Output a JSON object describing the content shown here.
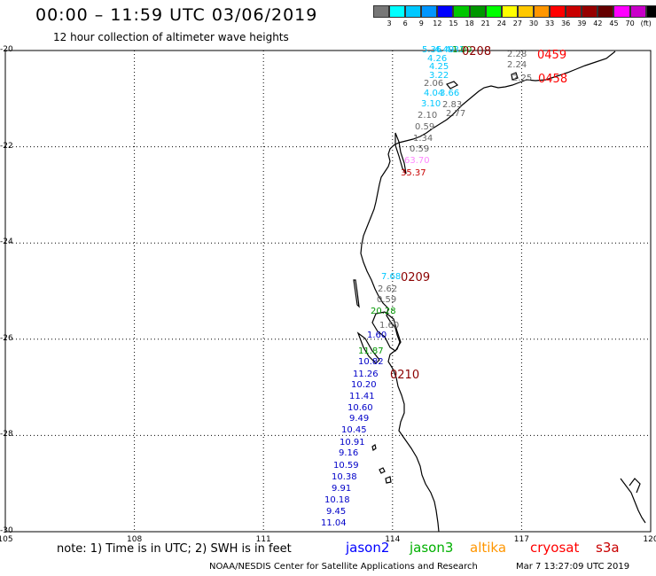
{
  "title": "00:00 – 11:59 UTC 03/06/2019",
  "subtitle": "12 hour collection of altimeter wave heights",
  "scale": {
    "colors": [
      "#777777",
      "#00ffff",
      "#00c8ff",
      "#0096ff",
      "#0000ff",
      "#00c800",
      "#009600",
      "#00ff00",
      "#ffff00",
      "#ffc800",
      "#ff9600",
      "#ff0000",
      "#c80000",
      "#960000",
      "#640000",
      "#ff00ff",
      "#c800c8",
      "#000000"
    ],
    "labels": [
      "3",
      "6",
      "9",
      "12",
      "15",
      "18",
      "21",
      "24",
      "27",
      "30",
      "33",
      "36",
      "39",
      "42",
      "45",
      "70",
      "(ft)"
    ]
  },
  "axes": {
    "lat_labels": [
      "-20",
      "-22",
      "-24",
      "-26",
      "-28",
      "-30"
    ],
    "lon_labels": [
      "105",
      "108",
      "111",
      "114",
      "117",
      "120"
    ]
  },
  "wave_heights": [
    {
      "text": "5.36",
      "color": "#00c8ff"
    },
    {
      "text": "4.49",
      "color": "#00c8ff"
    },
    {
      "text": "4.31",
      "color": "#00c8ff"
    },
    {
      "text": "4.26",
      "color": "#00c8ff"
    },
    {
      "text": "4.25",
      "color": "#00c8ff"
    },
    {
      "text": "3.22",
      "color": "#00c8ff"
    },
    {
      "text": "2.06",
      "color": "#666666"
    },
    {
      "text": "4.04",
      "color": "#00c8ff"
    },
    {
      "text": "3.66",
      "color": "#00c8ff"
    },
    {
      "text": "3.10",
      "color": "#00c8ff"
    },
    {
      "text": "2.83",
      "color": "#666666"
    },
    {
      "text": "2.10",
      "color": "#666666"
    },
    {
      "text": "2.77",
      "color": "#666666"
    },
    {
      "text": "0.59",
      "color": "#666666"
    },
    {
      "text": "1.34",
      "color": "#666666"
    },
    {
      "text": "0.59",
      "color": "#666666"
    },
    {
      "text": "63.70",
      "color": "#ff88ff"
    },
    {
      "text": "35.37",
      "color": "#c80000"
    },
    {
      "text": "2.28",
      "color": "#666666"
    },
    {
      "text": "2.24",
      "color": "#666666"
    },
    {
      "text": "2.25",
      "color": "#666666"
    },
    {
      "text": "1.00",
      "color": "#009600"
    },
    {
      "text": "7.68",
      "color": "#00c8ff"
    },
    {
      "text": "2.62",
      "color": "#666666"
    },
    {
      "text": "0.59",
      "color": "#666666"
    },
    {
      "text": "20.28",
      "color": "#009600"
    },
    {
      "text": "1.60",
      "color": "#666666"
    },
    {
      "text": "1.60",
      "color": "#0000c8"
    },
    {
      "text": "11.87",
      "color": "#009600"
    },
    {
      "text": "10.82",
      "color": "#0000c8"
    },
    {
      "text": "11.26",
      "color": "#0000c8"
    },
    {
      "text": "10.20",
      "color": "#0000c8"
    },
    {
      "text": "11.41",
      "color": "#0000c8"
    },
    {
      "text": "10.60",
      "color": "#0000c8"
    },
    {
      "text": "9.49",
      "color": "#0000c8"
    },
    {
      "text": "10.45",
      "color": "#0000c8"
    },
    {
      "text": "10.91",
      "color": "#0000c8"
    },
    {
      "text": "9.16",
      "color": "#0000c8"
    },
    {
      "text": "10.59",
      "color": "#0000c8"
    },
    {
      "text": "10.38",
      "color": "#0000c8"
    },
    {
      "text": "9.91",
      "color": "#0000c8"
    },
    {
      "text": "10.18",
      "color": "#0000c8"
    },
    {
      "text": "9.45",
      "color": "#0000c8"
    },
    {
      "text": "11.04",
      "color": "#0000c8"
    }
  ],
  "pass_times": [
    {
      "text": "0208",
      "color": "#8b0000"
    },
    {
      "text": "0459",
      "color": "#ff0000"
    },
    {
      "text": "0458",
      "color": "#ff0000"
    },
    {
      "text": "0209",
      "color": "#8b0000"
    },
    {
      "text": "0210",
      "color": "#8b0000"
    }
  ],
  "note": "note: 1) Time is in UTC; 2) SWH is in feet",
  "legend": [
    {
      "name": "jason2",
      "color": "#0000ff"
    },
    {
      "name": "jason3",
      "color": "#00b000"
    },
    {
      "name": "altika",
      "color": "#ff9600"
    },
    {
      "name": "cryosat",
      "color": "#ff0000"
    },
    {
      "name": "s3a",
      "color": "#c80000"
    }
  ],
  "footer": {
    "credit": "NOAA/NESDIS Center for Satellite Applications and Research",
    "timestamp": "Mar  7 13:27:09 UTC 2019"
  }
}
